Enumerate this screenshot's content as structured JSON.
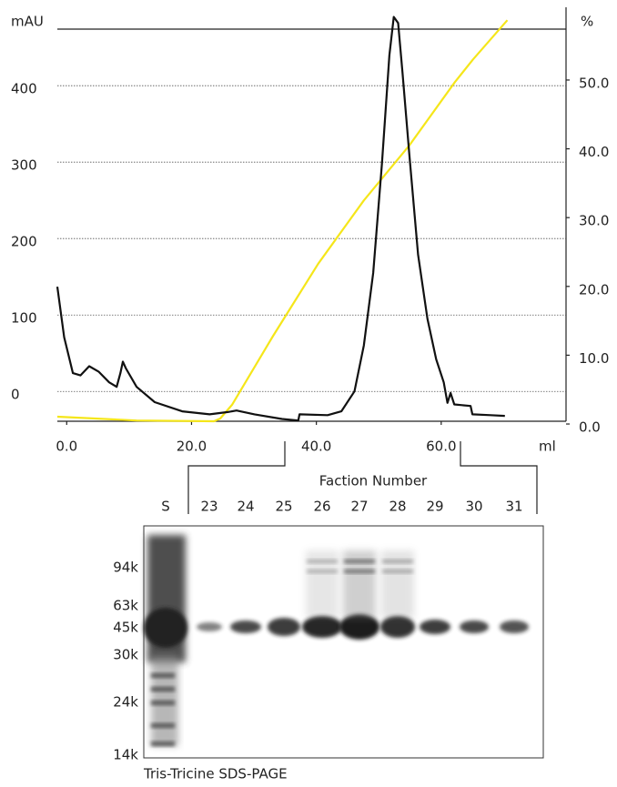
{
  "chart_data": {
    "type": "line",
    "ylabel": "mAU",
    "y2label": "%",
    "xlabel": "ml",
    "xlim": [
      -1.5,
      80
    ],
    "xticks": [
      {
        "value": 0,
        "label": "0.0"
      },
      {
        "value": 20,
        "label": "20.0"
      },
      {
        "value": 40,
        "label": "40.0"
      },
      {
        "value": 60,
        "label": "60.0"
      }
    ],
    "ylim": [
      -39,
      474
    ],
    "yticks": [
      0,
      100,
      200,
      300,
      400
    ],
    "y2lim": [
      0.4,
      57.4
    ],
    "y2ticks": [
      {
        "value": 0,
        "label": "0.0"
      },
      {
        "value": 10,
        "label": "10.0"
      },
      {
        "value": 20,
        "label": "20.0"
      },
      {
        "value": 30,
        "label": "30.0"
      },
      {
        "value": 40,
        "label": "40.0"
      },
      {
        "value": 50,
        "label": "50.0"
      }
    ],
    "grid": true,
    "series": [
      {
        "color": "#111111",
        "x": [
          -1.5,
          -0.4,
          1.0,
          2.2,
          3.6,
          5.1,
          6.8,
          8.0,
          8.6,
          9.0,
          9.5,
          11.2,
          14.1,
          18.5,
          22.9,
          25.8,
          27.2,
          30.1,
          34.5,
          37.1,
          37.3,
          41.8,
          44.0,
          46.1,
          47.6,
          49.1,
          50.5,
          51.7,
          52.4,
          53.1,
          53.8,
          54.9,
          56.3,
          57.8,
          59.2,
          60.4,
          61.0,
          61.5,
          62.1,
          64.7,
          65.0,
          67.9,
          70.2
        ],
        "values": [
          137,
          71,
          24,
          21,
          33,
          26,
          12,
          6,
          24,
          39,
          30,
          6,
          -14,
          -26,
          -30,
          -27,
          -25,
          -30,
          -36,
          -38,
          -30,
          -31,
          -26,
          0,
          60,
          155,
          298,
          440,
          490,
          482,
          417,
          310,
          179,
          95,
          42,
          12,
          -15,
          -2,
          -17,
          -19,
          -30,
          -31,
          -32
        ]
      },
      {
        "color": "#f5e61a",
        "axis": "y2",
        "x": [
          -1.5,
          11.2,
          23.6,
          24.6,
          26.5,
          33.0,
          40.3,
          47.6,
          54.9,
          62.2,
          65.1,
          70.6
        ],
        "values": [
          1.06,
          0.5,
          0.4,
          0.8,
          2.8,
          12.7,
          23.3,
          32.5,
          40.5,
          49.7,
          53.0,
          58.7
        ]
      }
    ]
  },
  "gel": {
    "title": "Faction Number",
    "lanes": [
      "S",
      "23",
      "24",
      "25",
      "26",
      "27",
      "28",
      "29",
      "30",
      "31"
    ],
    "markers": [
      "94k",
      "63k",
      "45k",
      "30k",
      "24k",
      "14k"
    ],
    "caption": "Tris-Tricine SDS-PAGE"
  }
}
